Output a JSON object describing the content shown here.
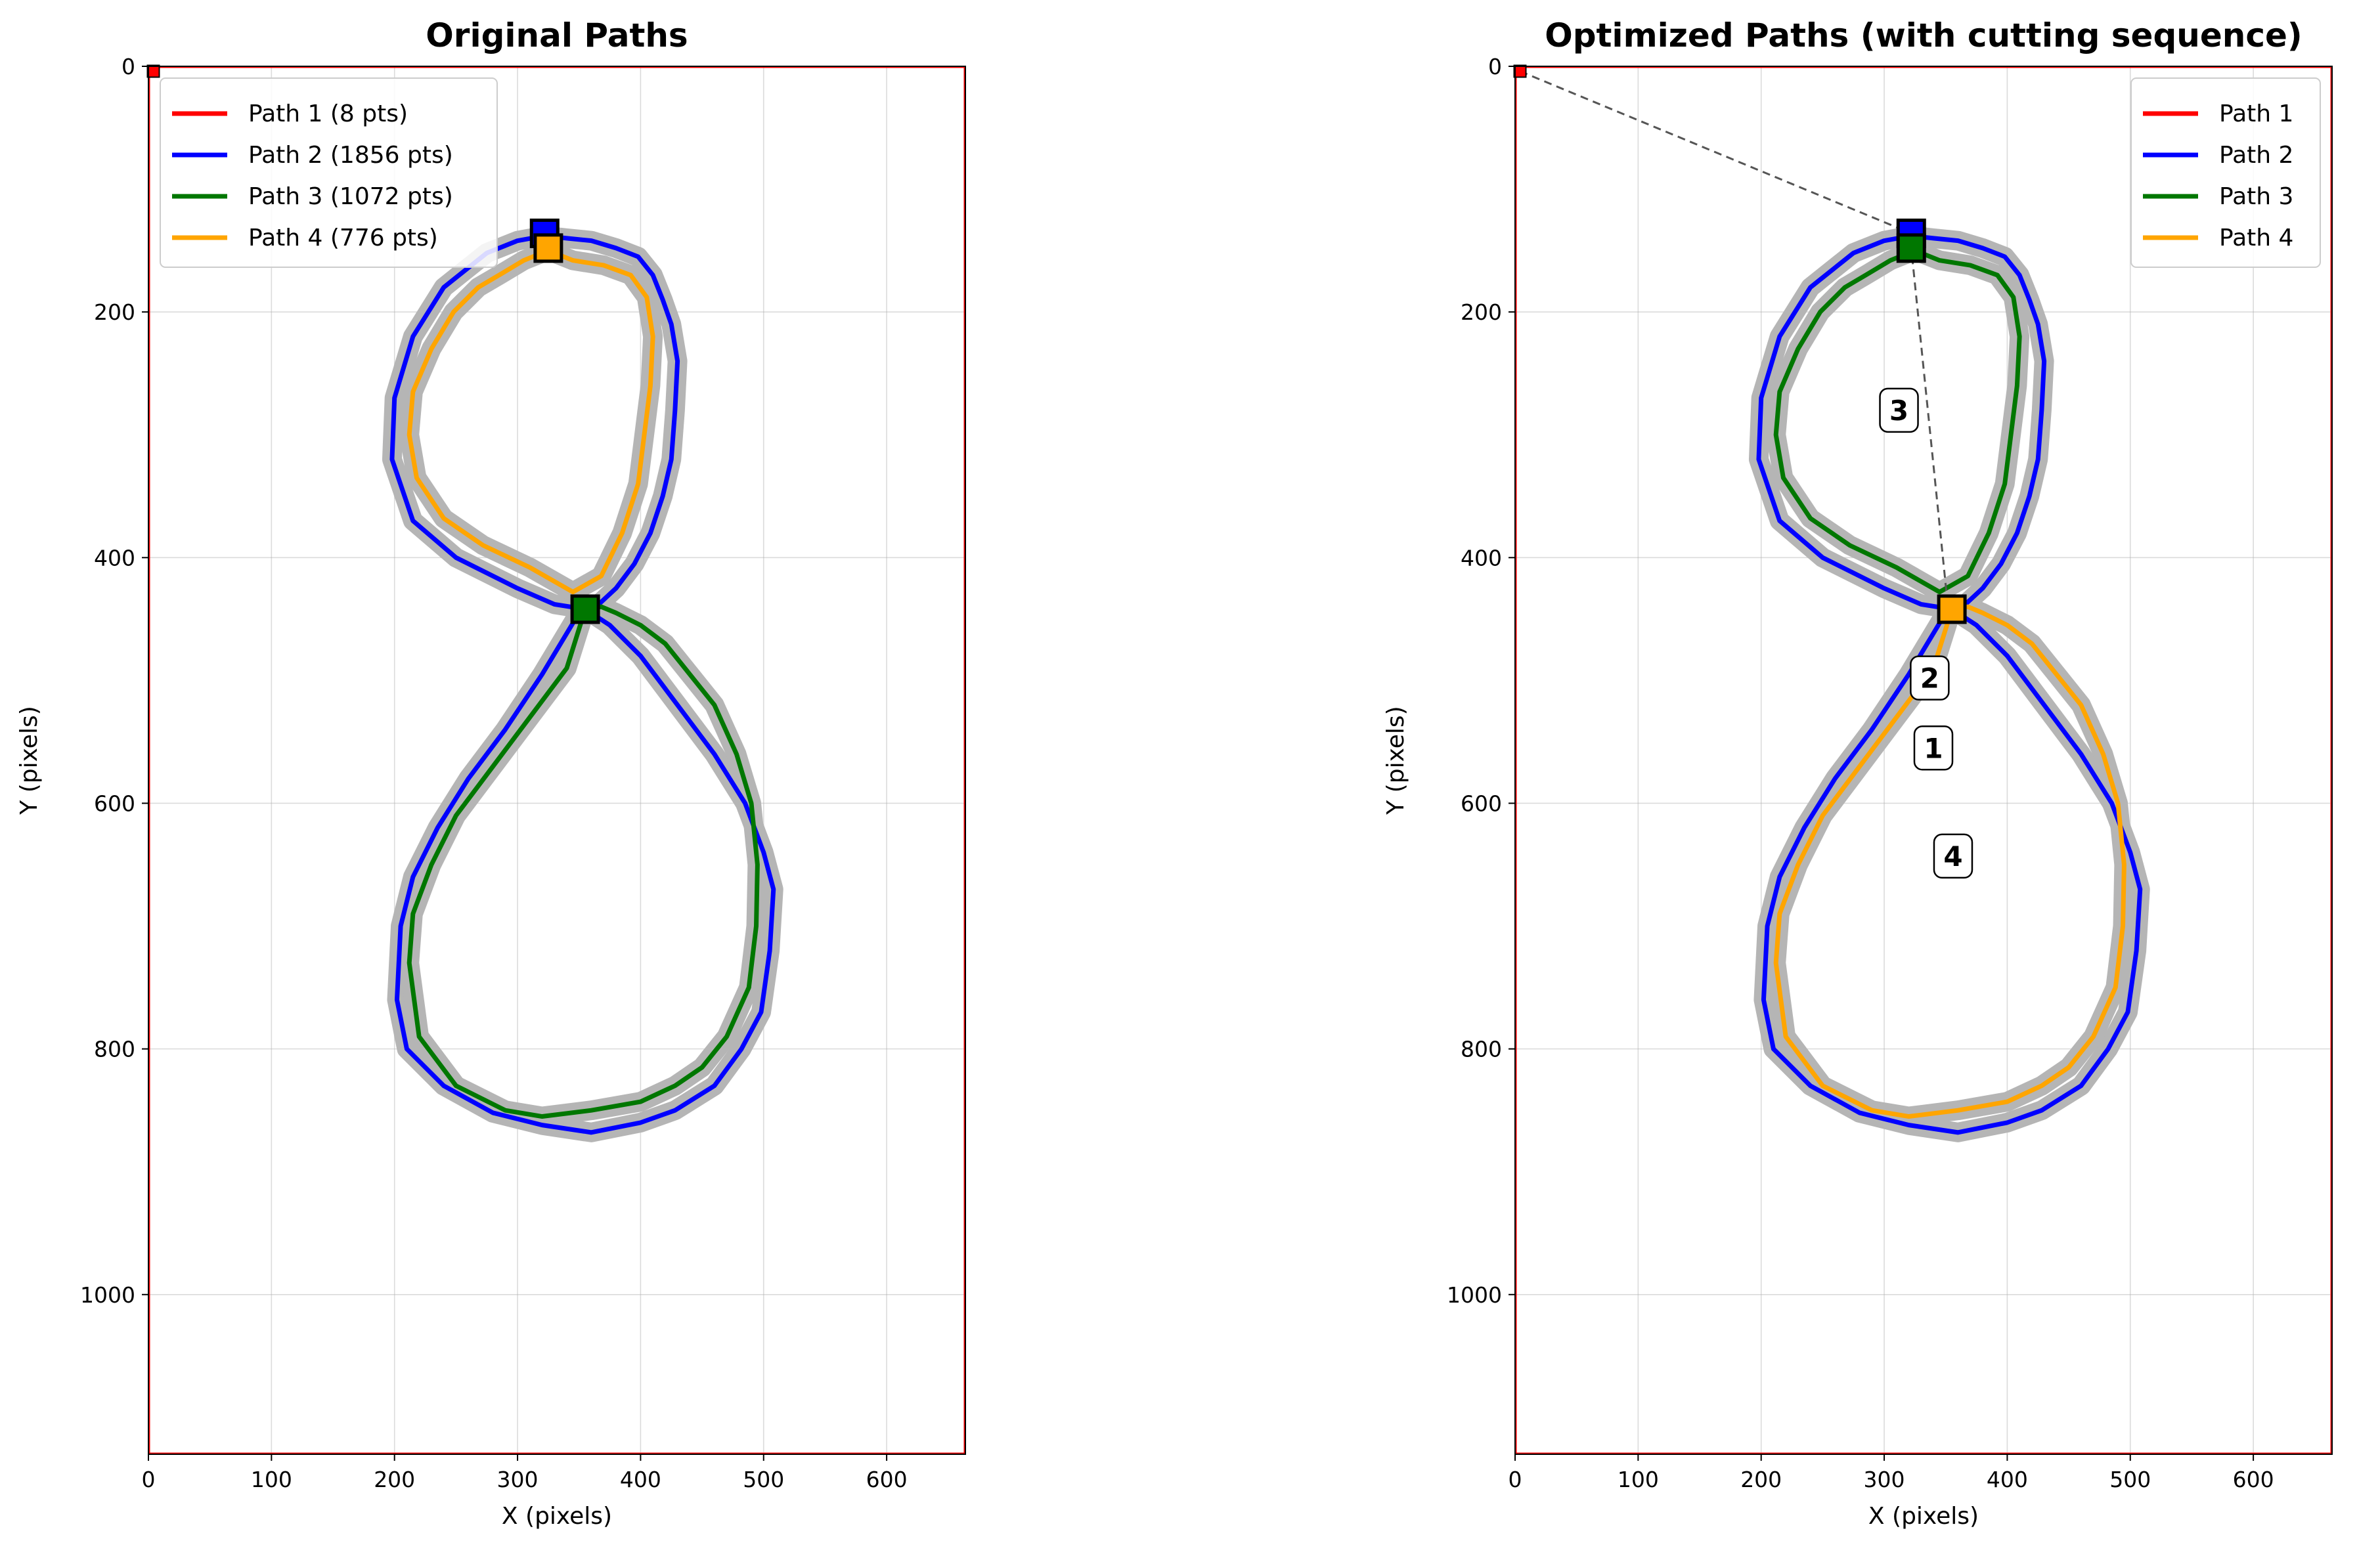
{
  "chart_data": [
    {
      "type": "line",
      "title": "Original Paths",
      "xlabel": "X (pixels)",
      "ylabel": "Y (pixels)",
      "xlim": [
        0,
        664
      ],
      "ylim": [
        1130,
        0
      ],
      "y_inverted": true,
      "grid": true,
      "x_ticks": [
        "0",
        "100",
        "200",
        "300",
        "400",
        "500",
        "600"
      ],
      "y_ticks": [
        "0",
        "200",
        "400",
        "600",
        "800",
        "1000"
      ],
      "legend_position": "top-left",
      "series": [
        {
          "name": "Path 1 (8 pts)",
          "color": "#ff0000",
          "x": [
            0,
            664,
            664,
            0,
            0
          ],
          "y": [
            0,
            0,
            1130,
            1130,
            0
          ],
          "start": [
            4,
            4
          ]
        },
        {
          "name": "Path 2 (1856 pts)",
          "color": "#0000ff",
          "x": [
            322,
            340,
            360,
            380,
            398,
            410,
            418,
            425,
            430,
            428,
            425,
            418,
            408,
            395,
            380,
            366,
            355,
            375,
            400,
            430,
            460,
            485,
            500,
            508,
            505,
            498,
            482,
            460,
            428,
            400,
            360,
            320,
            280,
            240,
            210,
            202,
            205,
            215,
            235,
            260,
            290,
            320,
            350,
            355,
            330,
            300,
            250,
            215,
            198,
            200,
            215,
            240,
            275,
            300,
            322
          ],
          "y": [
            138,
            140,
            142,
            148,
            155,
            170,
            190,
            210,
            240,
            280,
            320,
            350,
            380,
            405,
            425,
            438,
            442,
            455,
            480,
            520,
            560,
            600,
            640,
            670,
            720,
            770,
            800,
            830,
            850,
            860,
            868,
            862,
            852,
            830,
            800,
            760,
            700,
            660,
            620,
            580,
            540,
            495,
            445,
            442,
            438,
            425,
            400,
            370,
            320,
            270,
            220,
            180,
            152,
            142,
            138
          ],
          "start": [
            322,
            136
          ]
        },
        {
          "name": "Path 3 (1072 pts)",
          "color": "#007700",
          "x": [
            355,
            368,
            380,
            400,
            420,
            440,
            460,
            478,
            490,
            495,
            494,
            488,
            470,
            450,
            428,
            400,
            360,
            320,
            290,
            250,
            220,
            212,
            215,
            230,
            250,
            280,
            310,
            340,
            355
          ],
          "y": [
            442,
            440,
            445,
            455,
            470,
            495,
            520,
            560,
            600,
            650,
            700,
            750,
            790,
            815,
            830,
            843,
            850,
            855,
            850,
            830,
            790,
            730,
            690,
            650,
            610,
            570,
            530,
            490,
            442
          ],
          "start": [
            355,
            442
          ]
        },
        {
          "name": "Path 4 (776 pts)",
          "color": "#ffa500",
          "x": [
            325,
            345,
            370,
            392,
            405,
            410,
            408,
            403,
            398,
            385,
            368,
            345,
            310,
            272,
            240,
            218,
            212,
            215,
            230,
            248,
            268,
            285,
            305,
            325
          ],
          "y": [
            150,
            158,
            162,
            170,
            188,
            220,
            260,
            300,
            340,
            380,
            415,
            428,
            408,
            390,
            368,
            335,
            300,
            265,
            230,
            200,
            180,
            170,
            158,
            150
          ],
          "start": [
            325,
            148
          ]
        }
      ]
    },
    {
      "type": "line",
      "title": "Optimized Paths (with cutting sequence)",
      "xlabel": "X (pixels)",
      "ylabel": "Y (pixels)",
      "xlim": [
        0,
        664
      ],
      "ylim": [
        1130,
        0
      ],
      "y_inverted": true,
      "grid": true,
      "x_ticks": [
        "0",
        "100",
        "200",
        "300",
        "400",
        "500",
        "600"
      ],
      "y_ticks": [
        "0",
        "200",
        "400",
        "600",
        "800",
        "1000"
      ],
      "legend_position": "top-right",
      "travel_moves": {
        "color": "#555555",
        "x": [
          4,
          322,
          322,
          352
        ],
        "y": [
          4,
          136,
          148,
          442
        ]
      },
      "sequence_labels": [
        {
          "label": "3",
          "x": 312,
          "y": 280
        },
        {
          "label": "2",
          "x": 337,
          "y": 498
        },
        {
          "label": "1",
          "x": 340,
          "y": 555
        },
        {
          "label": "4",
          "x": 356,
          "y": 643
        }
      ],
      "series": [
        {
          "name": "Path 1",
          "color": "#ff0000",
          "x": [
            0,
            664,
            664,
            0,
            0
          ],
          "y": [
            0,
            0,
            1130,
            1130,
            0
          ],
          "start": [
            4,
            4
          ]
        },
        {
          "name": "Path 2",
          "color": "#0000ff",
          "x": [
            322,
            340,
            360,
            380,
            398,
            410,
            418,
            425,
            430,
            428,
            425,
            418,
            408,
            395,
            380,
            366,
            355,
            375,
            400,
            430,
            460,
            485,
            500,
            508,
            505,
            498,
            482,
            460,
            428,
            400,
            360,
            320,
            280,
            240,
            210,
            202,
            205,
            215,
            235,
            260,
            290,
            320,
            350,
            355,
            330,
            300,
            250,
            215,
            198,
            200,
            215,
            240,
            275,
            300,
            322
          ],
          "y": [
            138,
            140,
            142,
            148,
            155,
            170,
            190,
            210,
            240,
            280,
            320,
            350,
            380,
            405,
            425,
            438,
            442,
            455,
            480,
            520,
            560,
            600,
            640,
            670,
            720,
            770,
            800,
            830,
            850,
            860,
            868,
            862,
            852,
            830,
            800,
            760,
            700,
            660,
            620,
            580,
            540,
            495,
            445,
            442,
            438,
            425,
            400,
            370,
            320,
            270,
            220,
            180,
            152,
            142,
            138
          ],
          "start": [
            322,
            136
          ]
        },
        {
          "name": "Path 3",
          "color": "#007700",
          "x": [
            325,
            345,
            370,
            392,
            405,
            410,
            408,
            403,
            398,
            385,
            368,
            345,
            310,
            272,
            240,
            218,
            212,
            215,
            230,
            248,
            268,
            285,
            305,
            325
          ],
          "y": [
            150,
            158,
            162,
            170,
            188,
            220,
            260,
            300,
            340,
            380,
            415,
            428,
            408,
            390,
            368,
            335,
            300,
            265,
            230,
            200,
            180,
            170,
            158,
            150
          ],
          "start": [
            322,
            148
          ]
        },
        {
          "name": "Path 4",
          "color": "#ffa500",
          "x": [
            355,
            368,
            380,
            400,
            420,
            440,
            460,
            478,
            490,
            495,
            494,
            488,
            470,
            450,
            428,
            400,
            360,
            320,
            290,
            250,
            220,
            212,
            215,
            230,
            250,
            280,
            310,
            340,
            355
          ],
          "y": [
            442,
            440,
            445,
            455,
            470,
            495,
            520,
            560,
            600,
            650,
            700,
            750,
            790,
            815,
            830,
            843,
            850,
            855,
            850,
            830,
            790,
            730,
            690,
            650,
            610,
            570,
            530,
            490,
            442
          ],
          "start": [
            355,
            442
          ]
        }
      ]
    }
  ]
}
